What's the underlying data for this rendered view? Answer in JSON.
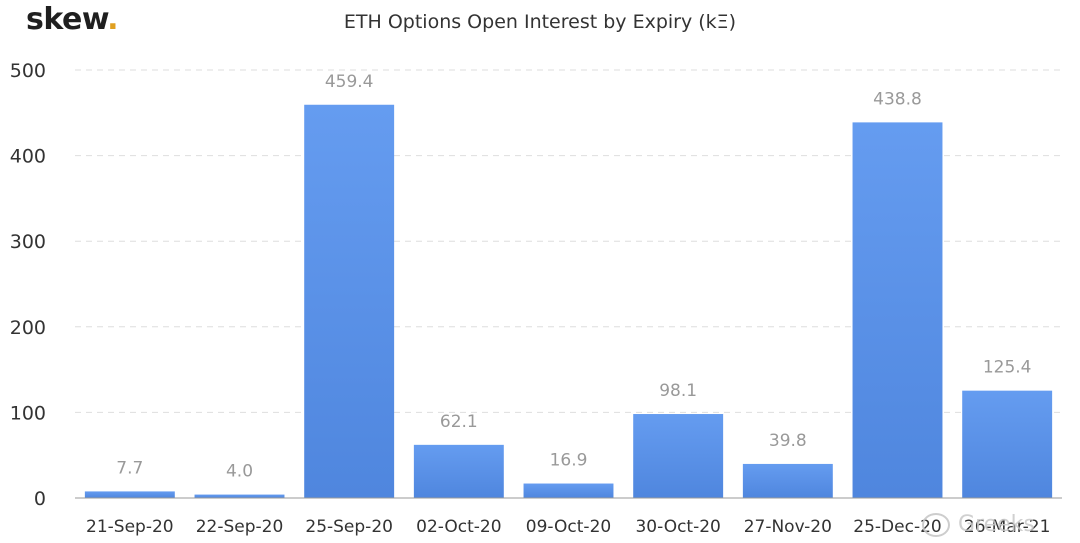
{
  "brand": {
    "name": "skew",
    "dot": "."
  },
  "chart_data": {
    "type": "bar",
    "title": "ETH Options Open Interest by Expiry (kΞ)",
    "xlabel": "",
    "ylabel": "",
    "categories": [
      "21-Sep-20",
      "22-Sep-20",
      "25-Sep-20",
      "02-Oct-20",
      "09-Oct-20",
      "30-Oct-20",
      "27-Nov-20",
      "25-Dec-20",
      "26-Mar-21"
    ],
    "values": [
      7.7,
      4.0,
      459.4,
      62.1,
      16.9,
      98.1,
      39.8,
      438.8,
      125.4
    ],
    "value_labels": [
      "7.7",
      "4.0",
      "459.4",
      "62.1",
      "16.9",
      "98.1",
      "39.8",
      "438.8",
      "125.4"
    ],
    "ylim": [
      0,
      500
    ],
    "yticks": [
      0,
      100,
      200,
      300,
      400,
      500
    ],
    "grid": true,
    "bar_color": "#5b8ee6",
    "bar_color_top": "#659cf0"
  },
  "watermark": "Greeks"
}
